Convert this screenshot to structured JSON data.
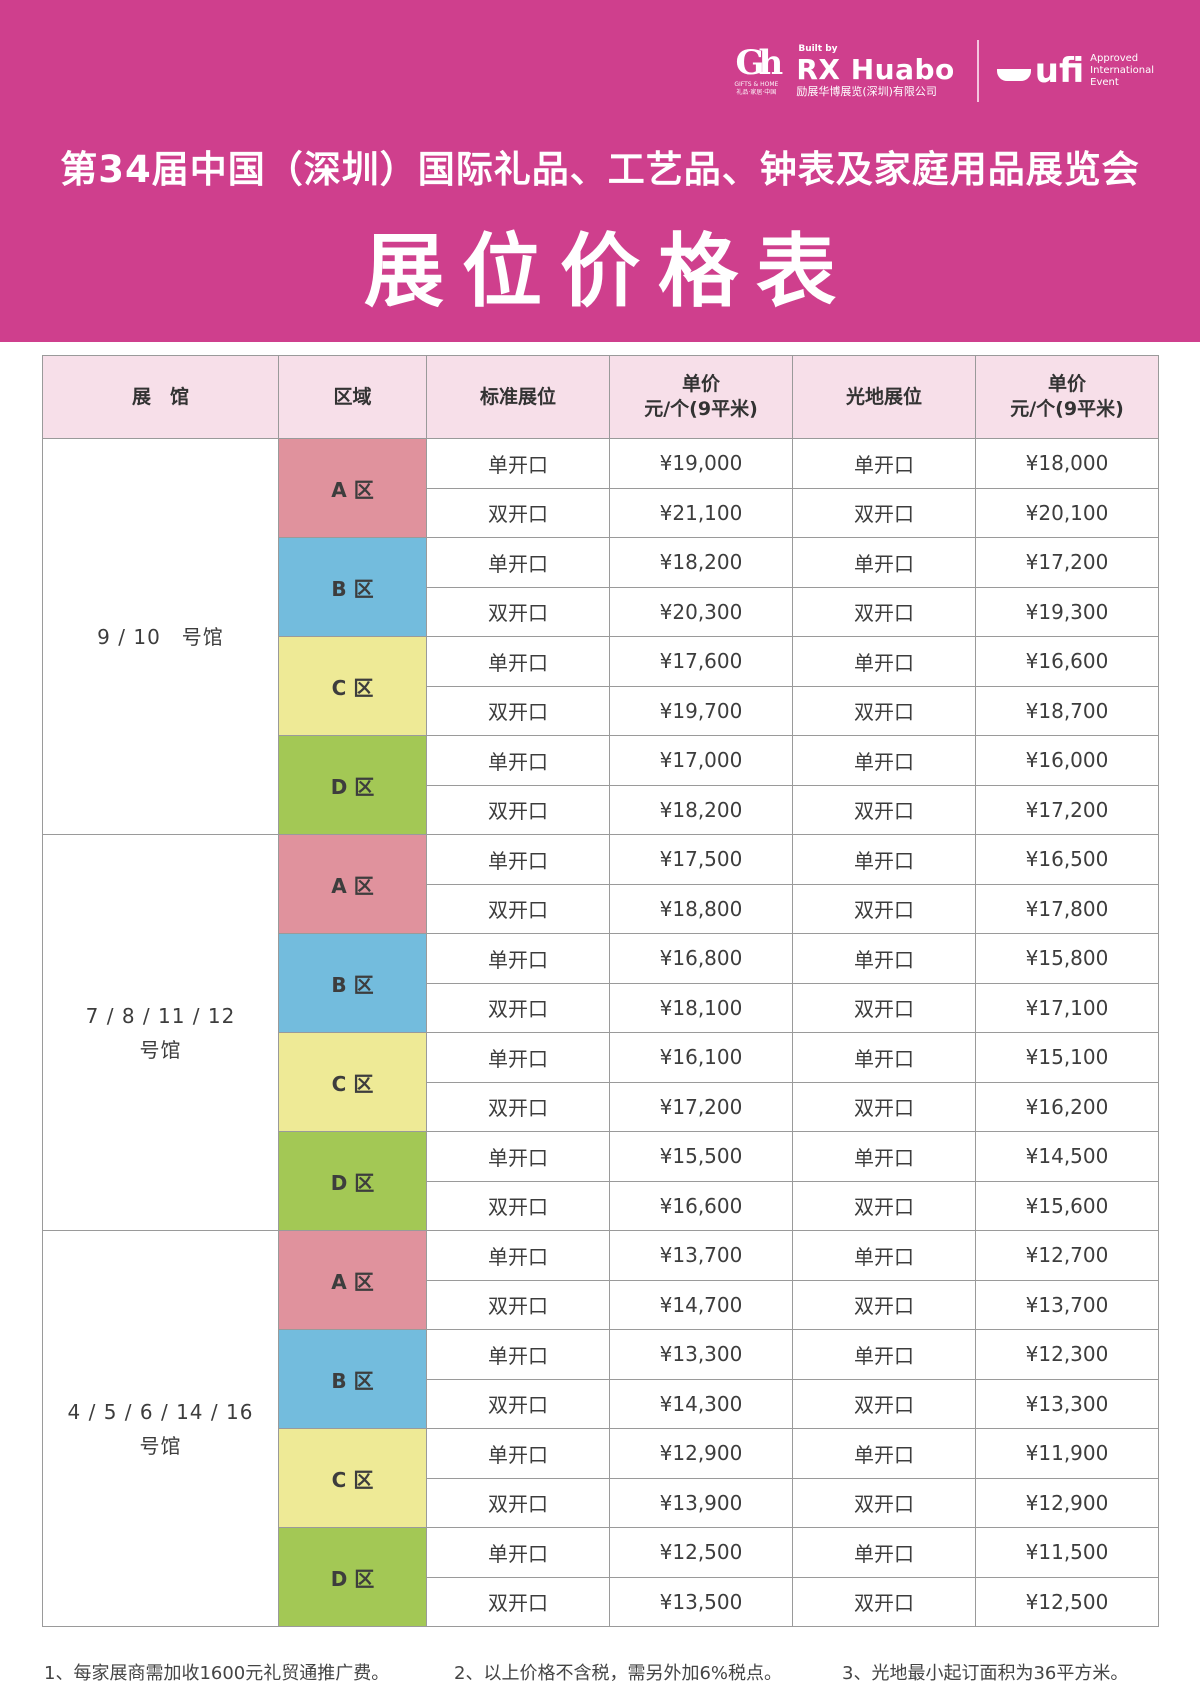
{
  "header": {
    "logo_gh": {
      "mark": "Gh",
      "small_text": "GIFTS & HOME",
      "small_sub": "礼品·家居·中国"
    },
    "logo_rx": {
      "built_by": "Built by",
      "brand": "RX Huabo",
      "company": "励展华博展览(深圳)有限公司"
    },
    "logo_ufi": {
      "word": "ufi",
      "approved": [
        "Approved",
        "International",
        "Event"
      ]
    },
    "title": "第34届中国（深圳）国际礼品、工艺品、钟表及家庭用品展览会",
    "subtitle": "展位价格表",
    "colors": {
      "banner": "#cf3f8d"
    }
  },
  "table": {
    "columns": [
      "展　馆",
      "区域",
      "标准展位",
      "单价",
      "元/个(9平米)",
      "光地展位",
      "单价",
      "元/个(9平米)"
    ],
    "header": {
      "hall": "展　馆",
      "zone": "区域",
      "standard": "标准展位",
      "standard_price_1": "单价",
      "standard_price_2": "元/个(9平米)",
      "raw": "光地展位",
      "raw_price_1": "单价",
      "raw_price_2": "元/个(9平米)"
    },
    "zone_colors": {
      "A": "#e0929d",
      "B": "#73bcdd",
      "C": "#eeea96",
      "D": "#a3c855"
    },
    "halls": [
      {
        "name_lines": [
          "9 / 10　号馆"
        ],
        "zones": [
          {
            "label": "A 区",
            "rows": [
              {
                "std_type": "单开口",
                "std_price": "¥19,000",
                "raw_type": "单开口",
                "raw_price": "¥18,000"
              },
              {
                "std_type": "双开口",
                "std_price": "¥21,100",
                "raw_type": "双开口",
                "raw_price": "¥20,100"
              }
            ]
          },
          {
            "label": "B 区",
            "rows": [
              {
                "std_type": "单开口",
                "std_price": "¥18,200",
                "raw_type": "单开口",
                "raw_price": "¥17,200"
              },
              {
                "std_type": "双开口",
                "std_price": "¥20,300",
                "raw_type": "双开口",
                "raw_price": "¥19,300"
              }
            ]
          },
          {
            "label": "C 区",
            "rows": [
              {
                "std_type": "单开口",
                "std_price": "¥17,600",
                "raw_type": "单开口",
                "raw_price": "¥16,600"
              },
              {
                "std_type": "双开口",
                "std_price": "¥19,700",
                "raw_type": "双开口",
                "raw_price": "¥18,700"
              }
            ]
          },
          {
            "label": "D 区",
            "rows": [
              {
                "std_type": "单开口",
                "std_price": "¥17,000",
                "raw_type": "单开口",
                "raw_price": "¥16,000"
              },
              {
                "std_type": "双开口",
                "std_price": "¥18,200",
                "raw_type": "双开口",
                "raw_price": "¥17,200"
              }
            ]
          }
        ]
      },
      {
        "name_lines": [
          "7 / 8 / 11 / 12",
          "号馆"
        ],
        "zones": [
          {
            "label": "A 区",
            "rows": [
              {
                "std_type": "单开口",
                "std_price": "¥17,500",
                "raw_type": "单开口",
                "raw_price": "¥16,500"
              },
              {
                "std_type": "双开口",
                "std_price": "¥18,800",
                "raw_type": "双开口",
                "raw_price": "¥17,800"
              }
            ]
          },
          {
            "label": "B 区",
            "rows": [
              {
                "std_type": "单开口",
                "std_price": "¥16,800",
                "raw_type": "单开口",
                "raw_price": "¥15,800"
              },
              {
                "std_type": "双开口",
                "std_price": "¥18,100",
                "raw_type": "双开口",
                "raw_price": "¥17,100"
              }
            ]
          },
          {
            "label": "C 区",
            "rows": [
              {
                "std_type": "单开口",
                "std_price": "¥16,100",
                "raw_type": "单开口",
                "raw_price": "¥15,100"
              },
              {
                "std_type": "双开口",
                "std_price": "¥17,200",
                "raw_type": "双开口",
                "raw_price": "¥16,200"
              }
            ]
          },
          {
            "label": "D 区",
            "rows": [
              {
                "std_type": "单开口",
                "std_price": "¥15,500",
                "raw_type": "单开口",
                "raw_price": "¥14,500"
              },
              {
                "std_type": "双开口",
                "std_price": "¥16,600",
                "raw_type": "双开口",
                "raw_price": "¥15,600"
              }
            ]
          }
        ]
      },
      {
        "name_lines": [
          "4 / 5 / 6 / 14 / 16",
          "号馆"
        ],
        "zones": [
          {
            "label": "A 区",
            "rows": [
              {
                "std_type": "单开口",
                "std_price": "¥13,700",
                "raw_type": "单开口",
                "raw_price": "¥12,700"
              },
              {
                "std_type": "双开口",
                "std_price": "¥14,700",
                "raw_type": "双开口",
                "raw_price": "¥13,700"
              }
            ]
          },
          {
            "label": "B 区",
            "rows": [
              {
                "std_type": "单开口",
                "std_price": "¥13,300",
                "raw_type": "单开口",
                "raw_price": "¥12,300"
              },
              {
                "std_type": "双开口",
                "std_price": "¥14,300",
                "raw_type": "双开口",
                "raw_price": "¥13,300"
              }
            ]
          },
          {
            "label": "C 区",
            "rows": [
              {
                "std_type": "单开口",
                "std_price": "¥12,900",
                "raw_type": "单开口",
                "raw_price": "¥11,900"
              },
              {
                "std_type": "双开口",
                "std_price": "¥13,900",
                "raw_type": "双开口",
                "raw_price": "¥12,900"
              }
            ]
          },
          {
            "label": "D 区",
            "rows": [
              {
                "std_type": "单开口",
                "std_price": "¥12,500",
                "raw_type": "单开口",
                "raw_price": "¥11,500"
              },
              {
                "std_type": "双开口",
                "std_price": "¥13,500",
                "raw_type": "双开口",
                "raw_price": "¥12,500"
              }
            ]
          }
        ]
      }
    ]
  },
  "notes": [
    "1、每家展商需加收1600元礼贸通推广费。",
    "2、以上价格不含税，需另外加6%税点。",
    "3、光地最小起订面积为36平方米。"
  ]
}
